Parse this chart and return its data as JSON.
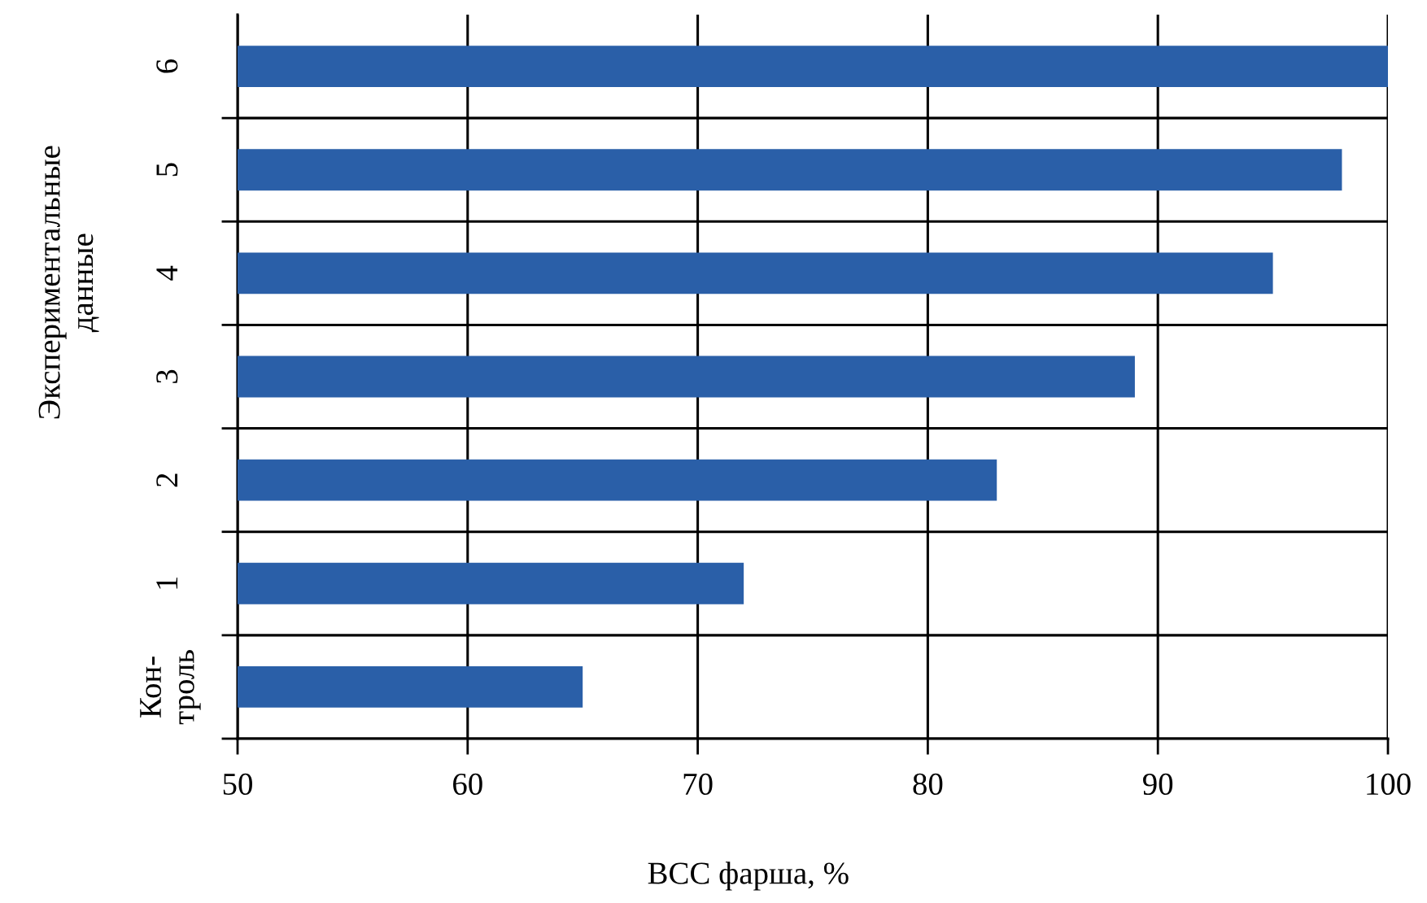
{
  "chart_data": {
    "type": "bar",
    "orientation": "horizontal",
    "categories": [
      "6",
      "5",
      "4",
      "3",
      "2",
      "1",
      "Кон-\nтроль"
    ],
    "values": [
      100,
      98,
      95,
      89,
      83,
      72,
      65
    ],
    "color": "#2a5fa8",
    "xlim": [
      50,
      100
    ],
    "xticks": [
      50,
      60,
      70,
      80,
      90,
      100
    ],
    "xlabel": "ВСС фарша, %",
    "ylabel": "Экспериментальные\nданные",
    "grid": true
  }
}
